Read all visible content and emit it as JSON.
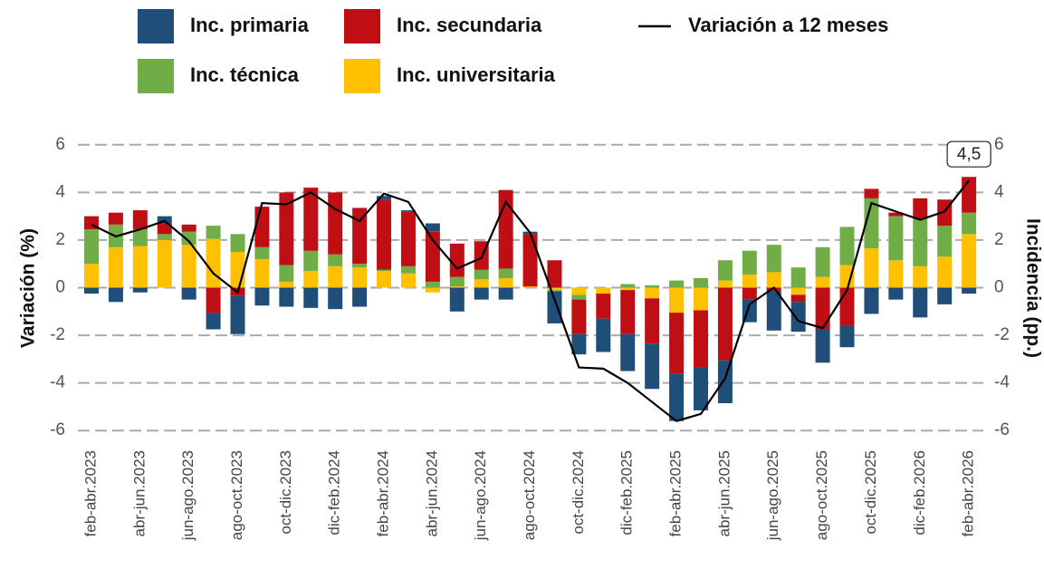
{
  "chart_data": {
    "type": "bar",
    "y_label": "Variación (%)",
    "y2_label": "Incidencia (pp.)",
    "categories": [
      "feb-abr.2023",
      null,
      "abr-jun.2023",
      null,
      "jun-ago.2023",
      null,
      "ago-oct.2023",
      null,
      "oct-dic.2023",
      null,
      "dic-feb.2024",
      null,
      "feb-abr.2024",
      null,
      "abr-jun.2024",
      null,
      "jun-ago.2024",
      null,
      "ago-oct.2024",
      null,
      "oct-dic.2024",
      null,
      "dic-feb.2025",
      null,
      "feb-abr.2025",
      null,
      "abr-jun.2025",
      null,
      "jun-ago.2025",
      null,
      "ago-oct.2025",
      null,
      "oct-dic.2025",
      null,
      "dic-feb.2026",
      null,
      "feb-abr.2026"
    ],
    "series": [
      {
        "name": "Inc. primaria",
        "color": "#1f4e79",
        "axis": "y2",
        "values": [
          -0.25,
          -0.6,
          -0.2,
          0.3,
          -0.5,
          -0.7,
          -1.6,
          -0.75,
          -0.8,
          -0.85,
          -0.9,
          -0.8,
          0.15,
          0.05,
          0.35,
          -1.0,
          -0.5,
          -0.5,
          0.1,
          -1.35,
          -0.85,
          -1.4,
          -1.55,
          -1.9,
          -2.0,
          -1.8,
          -1.8,
          -0.95,
          -1.65,
          -1.25,
          -1.4,
          -0.9,
          -1.1,
          -0.5,
          -1.25,
          -0.7,
          -0.25
        ]
      },
      {
        "name": "Inc. secundaria",
        "color": "#c00f14",
        "axis": "y2",
        "values": [
          0.55,
          0.5,
          0.8,
          0.45,
          0.3,
          -1.05,
          -0.35,
          1.7,
          3.05,
          2.65,
          2.6,
          2.35,
          2.95,
          2.3,
          2.1,
          1.4,
          1.2,
          3.3,
          2.2,
          1.15,
          -1.45,
          -1.05,
          -1.85,
          -1.9,
          -2.55,
          -2.4,
          -3.05,
          -0.5,
          -0.15,
          -0.3,
          -1.75,
          -1.6,
          0.4,
          0.15,
          0.85,
          1.1,
          1.5
        ]
      },
      {
        "name": "Inc. técnica",
        "color": "#70ad47",
        "axis": "y2",
        "values": [
          1.45,
          0.95,
          0.7,
          0.25,
          0.55,
          0.55,
          0.75,
          0.5,
          0.7,
          0.85,
          0.5,
          0.15,
          0.05,
          0.3,
          0.25,
          0.4,
          0.4,
          0.4,
          0,
          -0.05,
          -0.2,
          0,
          0.15,
          0.1,
          0.3,
          0.4,
          0.85,
          1.0,
          1.15,
          0.85,
          1.25,
          1.6,
          2.1,
          1.85,
          2.0,
          1.3,
          0.9
        ]
      },
      {
        "name": "Inc. universitaria",
        "color": "#ffc000",
        "axis": "y2",
        "values": [
          1.0,
          1.7,
          1.75,
          2.0,
          1.8,
          2.05,
          1.5,
          1.2,
          0.25,
          0.7,
          0.9,
          0.85,
          0.7,
          0.6,
          -0.2,
          0.05,
          0.35,
          0.4,
          0.05,
          -0.1,
          -0.3,
          -0.25,
          -0.1,
          -0.45,
          -1.05,
          -0.95,
          0.3,
          0.55,
          0.65,
          -0.3,
          0.45,
          0.95,
          1.65,
          1.15,
          0.9,
          1.3,
          2.25
        ]
      },
      {
        "name": "Variación a 12 meses",
        "color": "#000000",
        "type": "line",
        "values": [
          2.65,
          2.15,
          2.45,
          2.8,
          1.95,
          0.6,
          -0.2,
          3.55,
          3.5,
          4.0,
          3.3,
          2.8,
          3.95,
          3.6,
          2.0,
          0.8,
          1.25,
          3.6,
          2.3,
          -0.5,
          -3.35,
          -3.4,
          -4.0,
          -4.8,
          -5.6,
          -5.3,
          -3.8,
          -0.7,
          0.0,
          -1.4,
          -1.7,
          -0.1,
          3.55,
          3.2,
          2.85,
          3.2,
          4.5
        ],
        "value_labels": [
          null,
          null,
          null,
          null,
          null,
          null,
          null,
          null,
          null,
          null,
          null,
          null,
          null,
          null,
          null,
          null,
          null,
          null,
          null,
          null,
          null,
          null,
          null,
          null,
          null,
          null,
          null,
          null,
          null,
          null,
          null,
          null,
          null,
          null,
          null,
          null,
          "4,5"
        ]
      }
    ],
    "ylim": [
      -6.6,
      6.6
    ],
    "yticks": [
      -6,
      -4,
      -2,
      0,
      2,
      4,
      6
    ],
    "y2lim": [
      -6.6,
      6.6
    ],
    "y2ticks": [
      -6,
      -4,
      -2,
      0,
      2,
      4,
      6
    ],
    "grid": true
  }
}
